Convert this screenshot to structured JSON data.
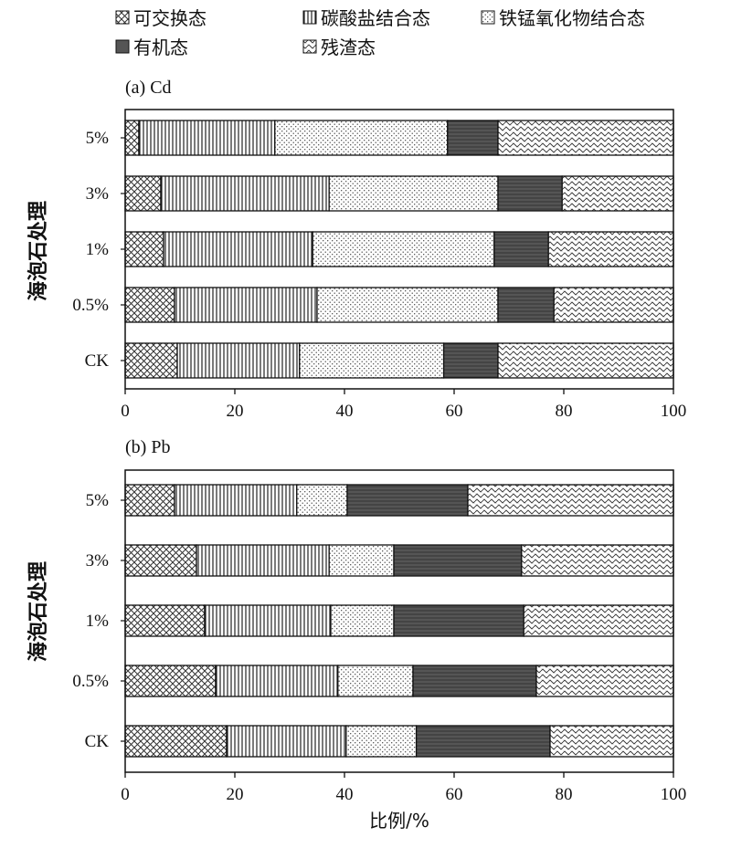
{
  "legend": [
    {
      "label": "可交换态",
      "pattern": "crosshatch"
    },
    {
      "label": "碳酸盐结合态",
      "pattern": "vlines"
    },
    {
      "label": "铁锰氧化物结合态",
      "pattern": "dots"
    },
    {
      "label": "有机态",
      "pattern": "dark"
    },
    {
      "label": "残渣态",
      "pattern": "waves"
    }
  ],
  "panels": [
    {
      "title": "(a) Cd",
      "ylabel": "海泡石处理"
    },
    {
      "title": "(b) Pb",
      "ylabel": "海泡石处理"
    }
  ],
  "xlabel": "比例/%",
  "chart_data": [
    {
      "type": "bar",
      "orientation": "horizontal",
      "stacked": true,
      "title": "(a) Cd",
      "ylabel": "海泡石处理",
      "xlabel": "",
      "xlim": [
        0,
        100
      ],
      "xticks": [
        0,
        20,
        40,
        60,
        80,
        100
      ],
      "categories": [
        "5%",
        "3%",
        "1%",
        "0.5%",
        "CK"
      ],
      "series": [
        {
          "name": "可交换态",
          "values": [
            2.5,
            6.5,
            7.0,
            9.0,
            9.5
          ]
        },
        {
          "name": "碳酸盐结合态",
          "values": [
            24.8,
            30.7,
            27.2,
            26.0,
            22.3
          ]
        },
        {
          "name": "铁锰氧化物结合态",
          "values": [
            31.5,
            30.8,
            33.1,
            33.0,
            26.3
          ]
        },
        {
          "name": "有机态",
          "values": [
            9.2,
            11.7,
            9.9,
            10.2,
            9.9
          ]
        },
        {
          "name": "残渣态",
          "values": [
            32.0,
            20.3,
            22.8,
            21.8,
            32.0
          ]
        }
      ]
    },
    {
      "type": "bar",
      "orientation": "horizontal",
      "stacked": true,
      "title": "(b) Pb",
      "ylabel": "海泡石处理",
      "xlabel": "比例/%",
      "xlim": [
        0,
        100
      ],
      "xticks": [
        0,
        20,
        40,
        60,
        80,
        100
      ],
      "categories": [
        "5%",
        "3%",
        "1%",
        "0.5%",
        "CK"
      ],
      "series": [
        {
          "name": "可交换态",
          "values": [
            9.0,
            13.0,
            14.5,
            16.5,
            18.5
          ]
        },
        {
          "name": "碳酸盐结合态",
          "values": [
            22.3,
            24.2,
            23.0,
            22.3,
            21.8
          ]
        },
        {
          "name": "铁锰氧化物结合态",
          "values": [
            9.2,
            11.8,
            11.5,
            13.7,
            12.8
          ]
        },
        {
          "name": "有机态",
          "values": [
            22.0,
            23.3,
            23.7,
            22.5,
            24.4
          ]
        },
        {
          "name": "残渣态",
          "values": [
            37.5,
            27.7,
            27.3,
            25.0,
            22.5
          ]
        }
      ]
    }
  ]
}
